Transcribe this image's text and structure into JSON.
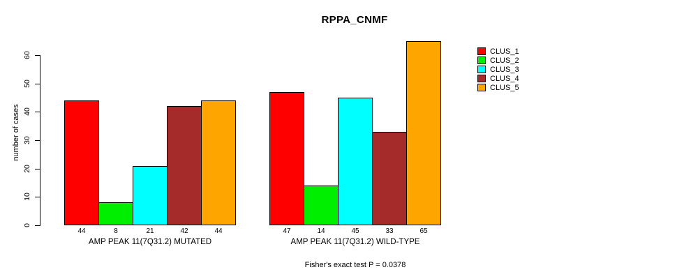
{
  "page": {
    "background_color": "#FFFFFF",
    "text_color": "#000000"
  },
  "chart_data": {
    "type": "bar",
    "title": "RPPA_CNMF",
    "xlabel": "",
    "ylabel": "number of cases",
    "ylim": [
      0,
      60
    ],
    "yticks": [
      0,
      10,
      20,
      30,
      40,
      50,
      60
    ],
    "grid": false,
    "bar_border_color": "#000000",
    "axis_color": "#000000",
    "categories": [
      "AMP PEAK 11(7Q31.2) MUTATED",
      "AMP PEAK 11(7Q31.2) WILD-TYPE"
    ],
    "series": [
      {
        "name": "CLUS_1",
        "color": "#FF0000",
        "values": [
          44,
          47
        ]
      },
      {
        "name": "CLUS_2",
        "color": "#00EE00",
        "values": [
          8,
          14
        ]
      },
      {
        "name": "CLUS_3",
        "color": "#00FFFF",
        "values": [
          21,
          45
        ]
      },
      {
        "name": "CLUS_4",
        "color": "#A52A2A",
        "values": [
          42,
          33
        ]
      },
      {
        "name": "CLUS_5",
        "color": "#FFA500",
        "values": [
          44,
          65
        ]
      }
    ],
    "show_value_labels": true,
    "legend": {
      "position": "right"
    },
    "footnote": "Fisher's exact test P = 0.0378"
  }
}
